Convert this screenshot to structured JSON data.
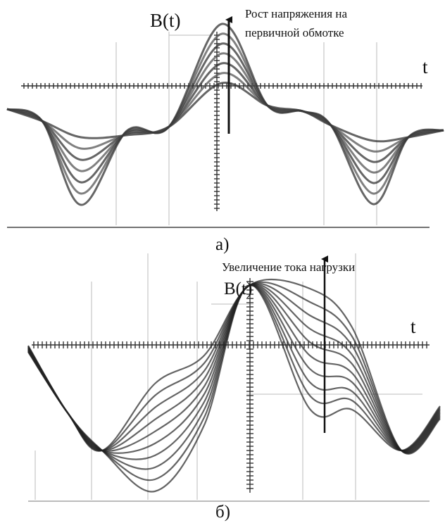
{
  "panel_a": {
    "axis_label_y": "B(t)",
    "axis_label_x": "t",
    "annotation": [
      "Рост напряжения на",
      "первичной обмотке"
    ],
    "caption": "а)"
  },
  "panel_b": {
    "axis_label_y": "B(t)",
    "axis_label_x": "t",
    "annotation": "Увеличение тока нагрузки",
    "caption": "б)"
  }
}
